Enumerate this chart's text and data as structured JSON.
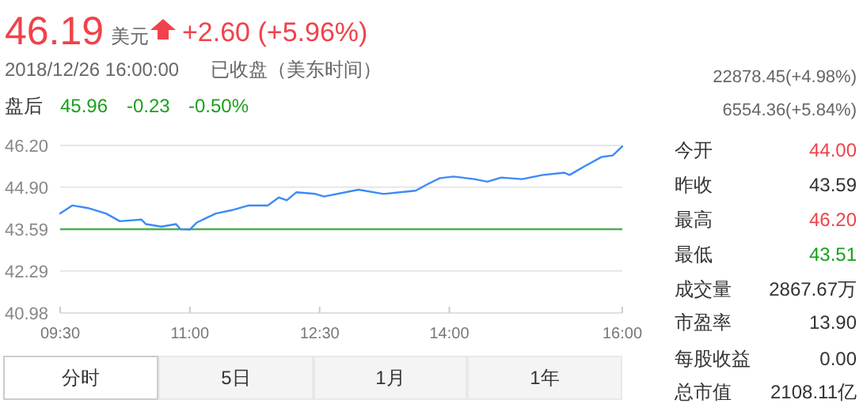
{
  "chart_data": [
    {
      "type": "other",
      "annotations": [
        "46.19",
        "美元",
        "+2.60 (+5.96%)",
        "2018/12/26 16:00:00",
        "已收盘（美东时间）",
        "盘后",
        "45.96",
        "-0.23",
        "-0.50%",
        "22878.45(+4.98%)",
        "6554.36(+5.84%)",
        "分时",
        "5日",
        "1月",
        "1年"
      ]
    },
    {
      "type": "line",
      "x": [
        9.5,
        9.64,
        9.82,
        10.03,
        10.19,
        10.44,
        10.49,
        10.67,
        10.84,
        10.89,
        11.0,
        11.08,
        11.3,
        11.48,
        11.68,
        11.9,
        12.03,
        12.12,
        12.23,
        12.45,
        12.55,
        12.95,
        13.24,
        13.61,
        13.74,
        13.89,
        14.05,
        14.29,
        14.44,
        14.6,
        14.84,
        15.08,
        15.33,
        15.39,
        15.57,
        15.76,
        15.89,
        16.0
      ],
      "series": [
        {
          "color": "#3d8af7",
          "values": [
            44.08,
            44.33,
            44.25,
            44.08,
            43.84,
            43.89,
            43.75,
            43.67,
            43.75,
            43.59,
            43.58,
            43.8,
            44.08,
            44.18,
            44.33,
            44.33,
            44.58,
            44.49,
            44.74,
            44.69,
            44.61,
            44.82,
            44.69,
            44.79,
            44.98,
            45.18,
            45.23,
            45.15,
            45.07,
            45.2,
            45.15,
            45.28,
            45.35,
            45.28,
            45.56,
            45.84,
            45.89,
            46.17
          ]
        }
      ],
      "xlim": [
        9.5,
        16.0
      ],
      "xticks": [
        {
          "value": 9.5,
          "label": "09:30"
        },
        {
          "value": 11,
          "label": "11:00"
        },
        {
          "value": 12.5,
          "label": "12:30"
        },
        {
          "value": 14,
          "label": "14:00"
        },
        {
          "value": 16,
          "label": "16:00"
        }
      ],
      "ylim": [
        40.98,
        46.2
      ],
      "yticks": [
        {
          "value": 40.98,
          "label": "40.98"
        },
        {
          "value": 42.29,
          "label": "42.29"
        },
        {
          "value": 43.59,
          "label": "43.59"
        },
        {
          "value": 44.9,
          "label": "44.90"
        },
        {
          "value": 46.2,
          "label": "46.20"
        }
      ],
      "grid": "y",
      "ref_lines": [
        {
          "axis": "y",
          "value": 43.59,
          "color": "#4caf50"
        }
      ]
    },
    {
      "type": "other",
      "categories": [
        "今开",
        "昨收",
        "最高",
        "最低",
        "成交量",
        "市盈率",
        "每股收益",
        "总市值"
      ],
      "annotations": [
        "44.00",
        "43.59",
        "46.20",
        "43.51",
        "2867.67万",
        "13.90",
        "0.00",
        "2108.11亿"
      ]
    }
  ]
}
